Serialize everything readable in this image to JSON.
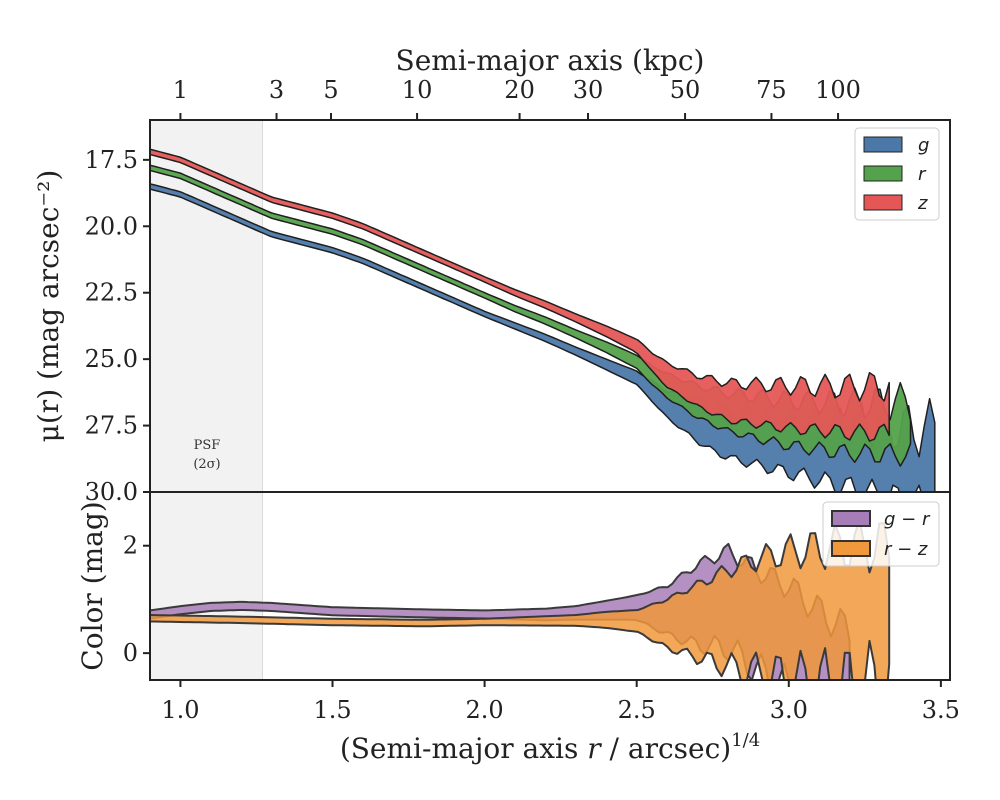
{
  "chart_data": [
    {
      "type": "area",
      "panel": "top",
      "ylabel": "μ(r) (mag arcsec⁻²)",
      "top_xlabel": "Semi-major axis (kpc)",
      "xlim": [
        0.9,
        3.53
      ],
      "ylim": [
        30.0,
        16.0
      ],
      "y_inverted": true,
      "yticks": [
        "17.5",
        "20.0",
        "22.5",
        "25.0",
        "27.5",
        "30.0"
      ],
      "top_ticks": [
        {
          "label": "1",
          "x": 1.0
        },
        {
          "label": "3",
          "x": 1.316
        },
        {
          "label": "5",
          "x": 1.495
        },
        {
          "label": "10",
          "x": 1.778
        },
        {
          "label": "20",
          "x": 2.115
        },
        {
          "label": "30",
          "x": 2.34
        },
        {
          "label": "50",
          "x": 2.659
        },
        {
          "label": "75",
          "x": 2.943
        },
        {
          "label": "100",
          "x": 3.162
        }
      ],
      "psf_label": [
        "PSF",
        "(2σ)"
      ],
      "psf_region": [
        0.9,
        1.27
      ],
      "legend_position": "upper-right",
      "series": [
        {
          "name": "g",
          "color": "#4C78A8",
          "center": [
            [
              0.9,
              18.5
            ],
            [
              1.0,
              18.8
            ],
            [
              1.1,
              19.3
            ],
            [
              1.2,
              19.8
            ],
            [
              1.3,
              20.3
            ],
            [
              1.4,
              20.6
            ],
            [
              1.5,
              20.9
            ],
            [
              1.6,
              21.3
            ],
            [
              1.7,
              21.8
            ],
            [
              1.8,
              22.3
            ],
            [
              1.9,
              22.8
            ],
            [
              2.0,
              23.3
            ],
            [
              2.1,
              23.75
            ],
            [
              2.2,
              24.2
            ],
            [
              2.3,
              24.7
            ],
            [
              2.4,
              25.2
            ],
            [
              2.5,
              25.7
            ],
            [
              2.55,
              26.2
            ],
            [
              2.6,
              26.7
            ],
            [
              2.65,
              27.0
            ],
            [
              2.7,
              27.3
            ],
            [
              2.75,
              27.6
            ],
            [
              2.8,
              27.8
            ],
            [
              2.9,
              28.0
            ],
            [
              3.0,
              28.2
            ],
            [
              3.1,
              28.4
            ],
            [
              3.2,
              28.6
            ],
            [
              3.3,
              28.8
            ],
            [
              3.4,
              29.0
            ],
            [
              3.48,
              29.0
            ]
          ],
          "width": [
            [
              0.9,
              0.2
            ],
            [
              2.0,
              0.2
            ],
            [
              2.3,
              0.3
            ],
            [
              2.5,
              0.5
            ],
            [
              2.6,
              1.0
            ],
            [
              2.7,
              1.6
            ],
            [
              2.9,
              2.0
            ],
            [
              3.1,
              2.3
            ],
            [
              3.3,
              2.6
            ],
            [
              3.48,
              2.8
            ]
          ]
        },
        {
          "name": "r",
          "color": "#54A24B",
          "center": [
            [
              0.9,
              17.8
            ],
            [
              1.0,
              18.1
            ],
            [
              1.1,
              18.6
            ],
            [
              1.2,
              19.1
            ],
            [
              1.3,
              19.6
            ],
            [
              1.4,
              19.9
            ],
            [
              1.5,
              20.2
            ],
            [
              1.6,
              20.6
            ],
            [
              1.7,
              21.1
            ],
            [
              1.8,
              21.6
            ],
            [
              1.9,
              22.1
            ],
            [
              2.0,
              22.6
            ],
            [
              2.1,
              23.1
            ],
            [
              2.2,
              23.55
            ],
            [
              2.3,
              24.05
            ],
            [
              2.4,
              24.55
            ],
            [
              2.5,
              25.1
            ],
            [
              2.55,
              25.6
            ],
            [
              2.6,
              26.0
            ],
            [
              2.7,
              26.6
            ],
            [
              2.8,
              27.0
            ],
            [
              2.9,
              27.2
            ],
            [
              3.0,
              27.4
            ],
            [
              3.1,
              27.5
            ],
            [
              3.2,
              27.6
            ],
            [
              3.3,
              27.6
            ],
            [
              3.4,
              27.6
            ]
          ],
          "width": [
            [
              0.9,
              0.2
            ],
            [
              2.0,
              0.2
            ],
            [
              2.3,
              0.3
            ],
            [
              2.5,
              0.5
            ],
            [
              2.6,
              0.9
            ],
            [
              2.7,
              1.2
            ],
            [
              2.9,
              1.6
            ],
            [
              3.1,
              1.8
            ],
            [
              3.4,
              2.0
            ]
          ]
        },
        {
          "name": "z",
          "color": "#E45756",
          "center": [
            [
              0.9,
              17.2
            ],
            [
              1.0,
              17.5
            ],
            [
              1.1,
              18.0
            ],
            [
              1.2,
              18.5
            ],
            [
              1.3,
              19.0
            ],
            [
              1.4,
              19.3
            ],
            [
              1.5,
              19.6
            ],
            [
              1.6,
              20.0
            ],
            [
              1.7,
              20.5
            ],
            [
              1.8,
              21.0
            ],
            [
              1.9,
              21.5
            ],
            [
              2.0,
              22.0
            ],
            [
              2.1,
              22.5
            ],
            [
              2.2,
              22.95
            ],
            [
              2.3,
              23.45
            ],
            [
              2.4,
              23.95
            ],
            [
              2.5,
              24.5
            ],
            [
              2.55,
              25.1
            ],
            [
              2.6,
              25.6
            ],
            [
              2.7,
              26.2
            ],
            [
              2.8,
              26.6
            ],
            [
              2.9,
              26.7
            ],
            [
              3.0,
              26.8
            ],
            [
              3.1,
              26.85
            ],
            [
              3.2,
              26.9
            ],
            [
              3.33,
              26.9
            ]
          ],
          "width": [
            [
              0.9,
              0.2
            ],
            [
              2.0,
              0.2
            ],
            [
              2.3,
              0.3
            ],
            [
              2.5,
              0.5
            ],
            [
              2.6,
              0.9
            ],
            [
              2.8,
              1.4
            ],
            [
              3.0,
              1.6
            ],
            [
              3.33,
              1.8
            ]
          ]
        }
      ]
    },
    {
      "type": "area",
      "panel": "bottom",
      "ylabel": "Color (mag)",
      "xlabel": "(Semi-major axis r / arcsec)^1/4",
      "xlabel_parts": {
        "a": "(Semi-major axis ",
        "var": "r",
        "b": " / arcsec)",
        "sup": "1/4"
      },
      "xlim": [
        0.9,
        3.53
      ],
      "ylim": [
        -0.5,
        3.0
      ],
      "xticks": [
        "1.0",
        "1.5",
        "2.0",
        "2.5",
        "3.0",
        "3.5"
      ],
      "yticks": [
        "0",
        "2"
      ],
      "legend_position": "upper-right",
      "series": [
        {
          "name": "g − r",
          "color": "#A77DB8",
          "center": [
            [
              0.9,
              0.72
            ],
            [
              1.0,
              0.8
            ],
            [
              1.1,
              0.86
            ],
            [
              1.2,
              0.88
            ],
            [
              1.3,
              0.86
            ],
            [
              1.5,
              0.78
            ],
            [
              1.8,
              0.74
            ],
            [
              2.0,
              0.72
            ],
            [
              2.2,
              0.72
            ],
            [
              2.3,
              0.75
            ],
            [
              2.4,
              0.8
            ],
            [
              2.5,
              0.85
            ],
            [
              2.6,
              0.8
            ],
            [
              2.7,
              0.9
            ],
            [
              2.8,
              1.0
            ],
            [
              2.9,
              0.6
            ],
            [
              3.0,
              0.3
            ],
            [
              3.1,
              -0.2
            ],
            [
              3.2,
              -0.6
            ]
          ],
          "width": [
            [
              0.9,
              0.15
            ],
            [
              2.0,
              0.15
            ],
            [
              2.3,
              0.25
            ],
            [
              2.5,
              0.45
            ],
            [
              2.6,
              0.9
            ],
            [
              2.7,
              1.5
            ],
            [
              2.8,
              1.8
            ],
            [
              3.0,
              1.9
            ],
            [
              3.2,
              2.0
            ]
          ]
        },
        {
          "name": "r − z",
          "color": "#F0983C",
          "center": [
            [
              0.9,
              0.65
            ],
            [
              1.0,
              0.64
            ],
            [
              1.2,
              0.62
            ],
            [
              1.5,
              0.58
            ],
            [
              1.8,
              0.56
            ],
            [
              2.0,
              0.58
            ],
            [
              2.2,
              0.6
            ],
            [
              2.4,
              0.62
            ],
            [
              2.5,
              0.6
            ],
            [
              2.6,
              0.55
            ],
            [
              2.7,
              0.6
            ],
            [
              2.8,
              0.65
            ],
            [
              2.9,
              0.7
            ],
            [
              3.0,
              0.7
            ],
            [
              3.1,
              0.7
            ],
            [
              3.2,
              0.7
            ],
            [
              3.33,
              0.7
            ]
          ],
          "width": [
            [
              0.9,
              0.12
            ],
            [
              2.0,
              0.12
            ],
            [
              2.3,
              0.2
            ],
            [
              2.5,
              0.4
            ],
            [
              2.6,
              0.9
            ],
            [
              2.8,
              1.8
            ],
            [
              3.0,
              2.4
            ],
            [
              3.2,
              2.6
            ],
            [
              3.33,
              2.6
            ]
          ]
        }
      ]
    }
  ]
}
